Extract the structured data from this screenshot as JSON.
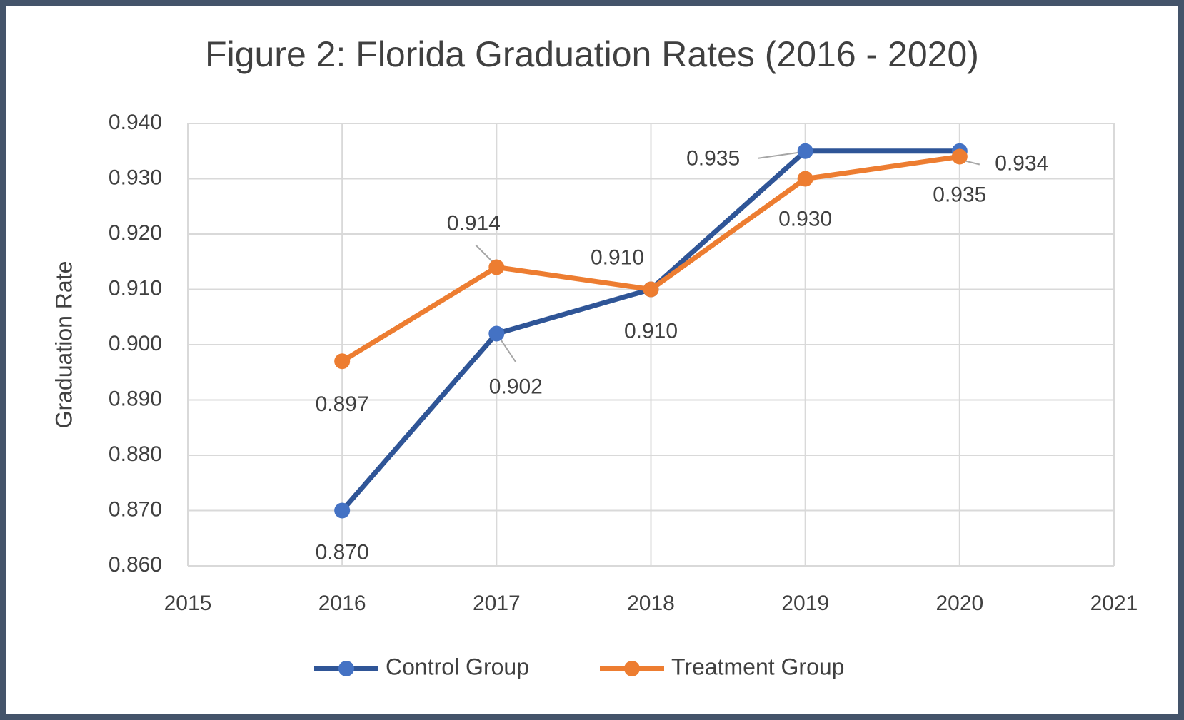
{
  "chart_data": {
    "type": "line",
    "title": "Figure 2: Florida Graduation Rates (2016 - 2020)",
    "xlabel": "",
    "ylabel": "Graduation Rate",
    "x": [
      2016,
      2017,
      2018,
      2019,
      2020
    ],
    "xlim": [
      2015,
      2021
    ],
    "ylim": [
      0.86,
      0.94
    ],
    "x_ticks": [
      "2015",
      "2016",
      "2017",
      "2018",
      "2019",
      "2020",
      "2021"
    ],
    "y_ticks": [
      "0.940",
      "0.930",
      "0.920",
      "0.910",
      "0.900",
      "0.890",
      "0.880",
      "0.870",
      "0.860"
    ],
    "grid": true,
    "legend_position": "bottom",
    "series": [
      {
        "name": "Control Group",
        "color": "#2f5597",
        "marker_color": "#4472c4",
        "values": [
          0.87,
          0.902,
          0.91,
          0.935,
          0.935
        ],
        "labels": [
          "0.870",
          "0.902",
          "0.910",
          "0.935",
          "0.935"
        ]
      },
      {
        "name": "Treatment Group",
        "color": "#ed7d31",
        "marker_color": "#ed7d31",
        "values": [
          0.897,
          0.914,
          0.91,
          0.93,
          0.934
        ],
        "labels": [
          "0.897",
          "0.914",
          "0.910",
          "0.930",
          "0.934"
        ]
      }
    ]
  }
}
